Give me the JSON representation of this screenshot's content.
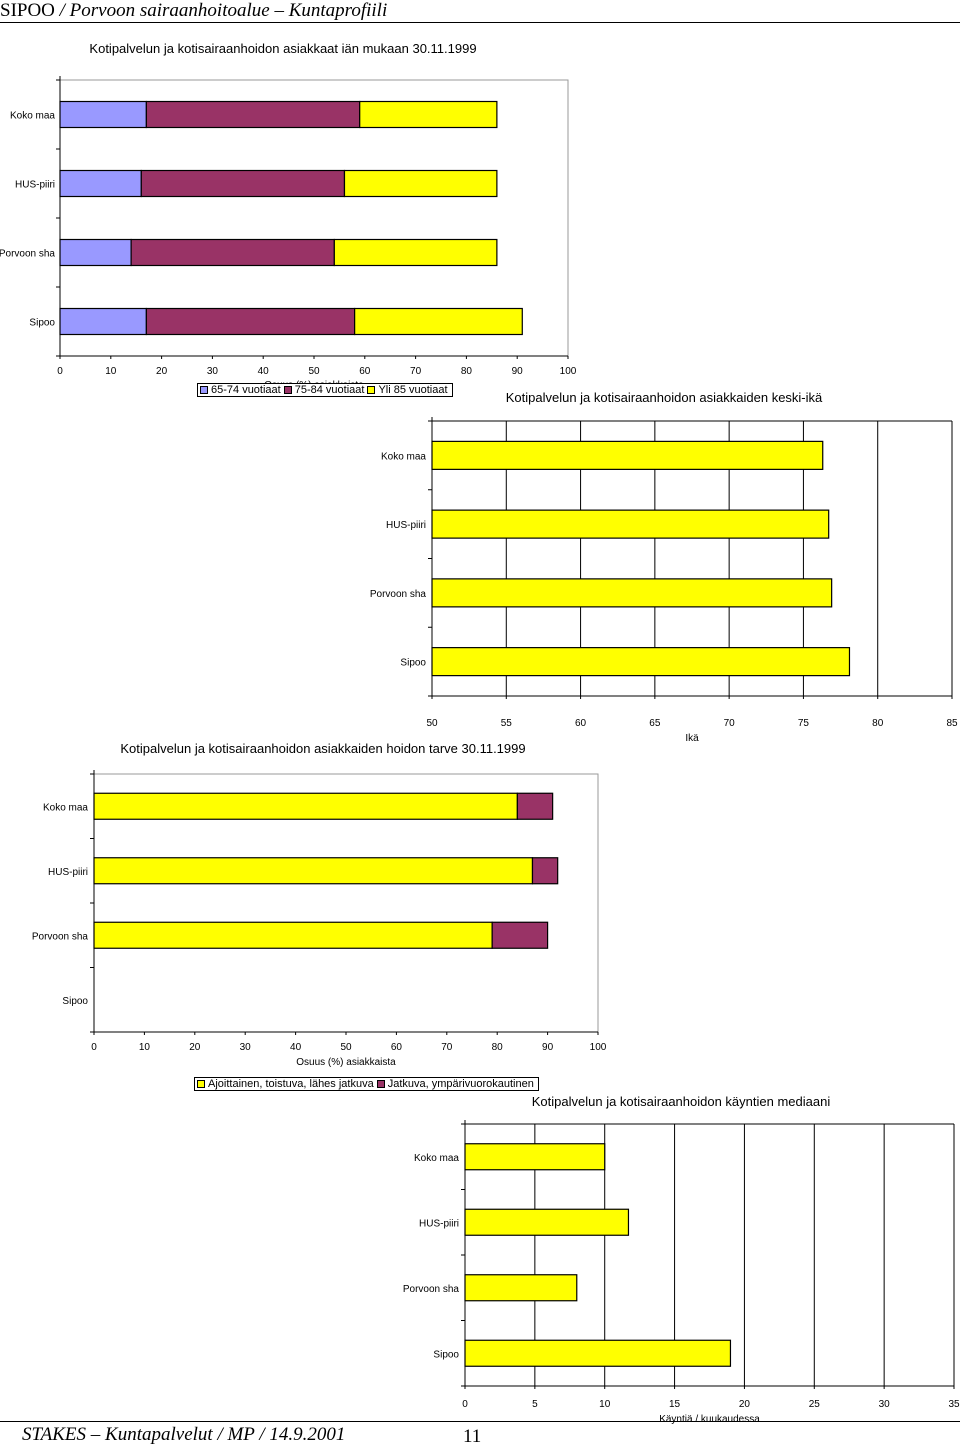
{
  "header": {
    "org": "SIPOO",
    "rest": " / Porvoon sairaanhoitoalue – Kuntaprofiili"
  },
  "footer": {
    "text": "STAKES – Kuntapalvelut / MP / 14.9.2001",
    "page": "11"
  },
  "colors": {
    "lavender": "#9999ff",
    "plum": "#993366",
    "yellow": "#ffff00",
    "axis": "#000000"
  },
  "legends": {
    "age": [
      "65-74 vuotiaat",
      "75-84 vuotiaat",
      "Yli 85 vuotiaat"
    ],
    "care": [
      "Ajoittainen, toistuva, lähes jatkuva",
      "Jatkuva, ympärivuorokautinen"
    ]
  },
  "chart_data": [
    {
      "id": "age",
      "type": "bar",
      "orientation": "horizontal",
      "stacked": true,
      "title": "Kotipalvelun ja kotisairaanhoidon asiakkaat iän mukaan 30.11.1999",
      "xlabel": "Osuus (%) asiakkaista",
      "ylabel": "",
      "categories": [
        "Koko maa",
        "HUS-piiri",
        "Porvoon sha",
        "Sipoo"
      ],
      "xlim": [
        0,
        100
      ],
      "xticks": [
        0,
        10,
        20,
        30,
        40,
        50,
        60,
        70,
        80,
        90,
        100
      ],
      "series": [
        {
          "name": "65-74 vuotiaat",
          "color": "#9999ff",
          "values": [
            17,
            16,
            14,
            17
          ]
        },
        {
          "name": "75-84 vuotiaat",
          "color": "#993366",
          "values": [
            42,
            40,
            40,
            41
          ]
        },
        {
          "name": "Yli 85 vuotiaat",
          "color": "#ffff00",
          "values": [
            27,
            30,
            32,
            33
          ]
        }
      ],
      "legend": "bottom"
    },
    {
      "id": "mean-age",
      "type": "bar",
      "orientation": "horizontal",
      "title": "Kotipalvelun ja kotisairaanhoidon asiakkaiden keski-ikä",
      "xlabel": "Ikä",
      "ylabel": "",
      "categories": [
        "Koko maa",
        "HUS-piiri",
        "Porvoon sha",
        "Sipoo"
      ],
      "xlim": [
        50,
        85
      ],
      "xticks": [
        50,
        55,
        60,
        65,
        70,
        75,
        80,
        85
      ],
      "series": [
        {
          "color": "#ffff00",
          "values": [
            76.3,
            76.7,
            76.9,
            78.1
          ]
        }
      ],
      "gridlines": "vertical"
    },
    {
      "id": "care-need",
      "type": "bar",
      "orientation": "horizontal",
      "stacked": true,
      "title": "Kotipalvelun ja kotisairaanhoidon asiakkaiden hoidon tarve 30.11.1999",
      "xlabel": "Osuus (%) asiakkaista",
      "ylabel": "",
      "categories": [
        "Koko maa",
        "HUS-piiri",
        "Porvoon sha",
        "Sipoo"
      ],
      "xlim": [
        0,
        100
      ],
      "xticks": [
        0,
        10,
        20,
        30,
        40,
        50,
        60,
        70,
        80,
        90,
        100
      ],
      "series": [
        {
          "name": "Ajoittainen, toistuva, lähes jatkuva",
          "color": "#ffff00",
          "values": [
            84,
            87,
            79,
            0
          ]
        },
        {
          "name": "Jatkuva, ympärivuorokautinen",
          "color": "#993366",
          "values": [
            7,
            5,
            11,
            0
          ]
        }
      ],
      "legend": "bottom"
    },
    {
      "id": "median-visits",
      "type": "bar",
      "orientation": "horizontal",
      "title": "Kotipalvelun ja kotisairaanhoidon käyntien mediaani",
      "xlabel": "Käyntiä / kuukaudessa",
      "ylabel": "",
      "categories": [
        "Koko maa",
        "HUS-piiri",
        "Porvoon sha",
        "Sipoo"
      ],
      "xlim": [
        0,
        35
      ],
      "xticks": [
        0,
        5,
        10,
        15,
        20,
        25,
        30,
        35
      ],
      "series": [
        {
          "color": "#ffff00",
          "values": [
            10,
            11.7,
            8,
            19
          ]
        }
      ],
      "gridlines": "vertical"
    }
  ]
}
